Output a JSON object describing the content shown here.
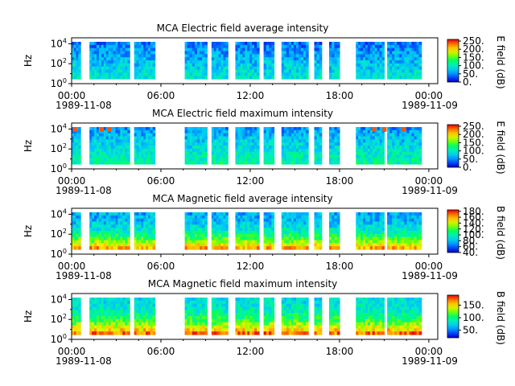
{
  "chart_data": {
    "type": "heatmap",
    "x_range": [
      "1989-11-08 00:00",
      "1989-11-09 00:30"
    ],
    "x_ticks": [
      "00:00",
      "06:00",
      "12:00",
      "18:00",
      "00:00"
    ],
    "x_date_labels": [
      "1989-11-08",
      "1989-11-09"
    ],
    "y_scale": "log",
    "y_ticks": [
      "10^0",
      "10^2",
      "10^4"
    ],
    "data_segments_hours": [
      [
        0.0,
        0.6
      ],
      [
        1.2,
        3.9
      ],
      [
        4.2,
        5.6
      ],
      [
        7.6,
        9.1
      ],
      [
        9.4,
        10.5
      ],
      [
        11.0,
        12.6
      ],
      [
        12.9,
        13.6
      ],
      [
        14.1,
        15.9
      ],
      [
        16.3,
        16.8
      ],
      [
        17.3,
        18.0
      ],
      [
        19.1,
        21.0
      ],
      [
        21.2,
        23.5
      ]
    ],
    "panels": [
      {
        "title": "MCA  Electric field average intensity",
        "ylabel": "Hz",
        "colorbar_label": "E field (dB)",
        "colorbar_ticks": [
          "0.",
          "50.",
          "100.",
          "150.",
          "200.",
          "250."
        ],
        "colorbar_range": [
          0,
          260
        ],
        "colormap": "rainbow",
        "typical_level": [
          20,
          110
        ],
        "saturated_events": []
      },
      {
        "title": "MCA  Electric field maximum intensity",
        "ylabel": "Hz",
        "colorbar_label": "E field (dB)",
        "colorbar_ticks": [
          "0.",
          "50.",
          "100.",
          "150.",
          "200.",
          "250."
        ],
        "colorbar_range": [
          0,
          260
        ],
        "colormap": "rainbow",
        "typical_level": [
          30,
          130
        ],
        "saturated_events": [
          0.2,
          2.0,
          2.5,
          20.3,
          21.0,
          22.3
        ]
      },
      {
        "title": "MCA  Magnetic field average intensity",
        "ylabel": "Hz",
        "colorbar_label": "B field (dB)",
        "colorbar_ticks": [
          "40.",
          "60.",
          "80.",
          "100.",
          "120.",
          "140.",
          "160.",
          "180."
        ],
        "colorbar_range": [
          40,
          185
        ],
        "colormap": "rainbow",
        "typical_level": [
          60,
          160
        ],
        "saturated_events": []
      },
      {
        "title": "MCA  Magnetic field maximum intensity",
        "ylabel": "Hz",
        "colorbar_label": "B field (dB)",
        "colorbar_ticks": [
          "50.",
          "100.",
          "150."
        ],
        "colorbar_range": [
          20,
          190
        ],
        "colormap": "rainbow",
        "typical_level": [
          60,
          170
        ],
        "saturated_events": []
      }
    ]
  }
}
